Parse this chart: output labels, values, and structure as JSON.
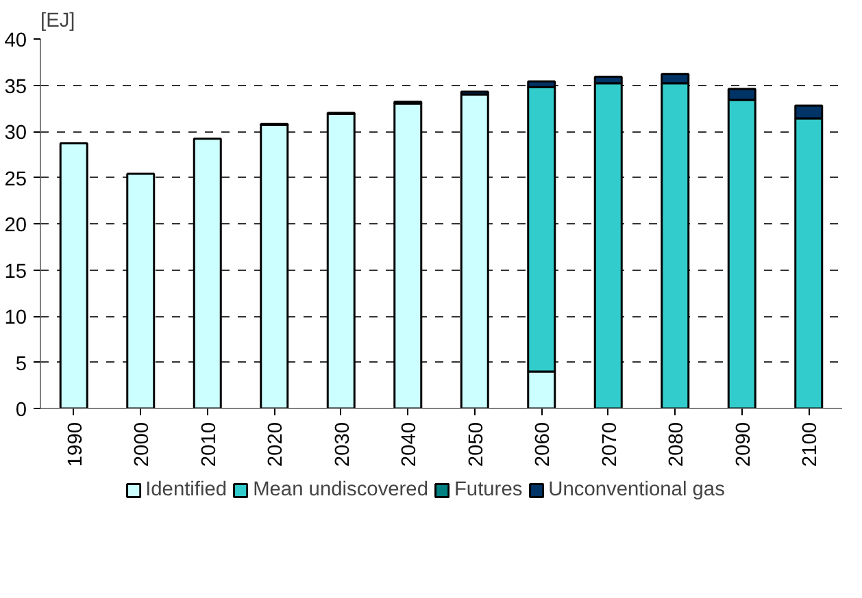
{
  "chart_data": {
    "type": "bar",
    "stacked": true,
    "ylabel": "[EJ]",
    "categories": [
      "1990",
      "2000",
      "2010",
      "2020",
      "2030",
      "2040",
      "2050",
      "2060",
      "2070",
      "2080",
      "2090",
      "2100"
    ],
    "series": [
      {
        "name": "Identified",
        "color": "#ccffff",
        "values": [
          28.7,
          25.4,
          29.2,
          30.7,
          31.9,
          33.0,
          34.0,
          4.0,
          0,
          0,
          0,
          0
        ]
      },
      {
        "name": "Mean undiscovered",
        "color": "#33cccc",
        "values": [
          0,
          0,
          0,
          0,
          0,
          0,
          0,
          30.8,
          35.2,
          35.2,
          33.4,
          31.4
        ]
      },
      {
        "name": "Futures",
        "color": "#008080",
        "values": [
          0,
          0,
          0,
          0,
          0,
          0,
          0,
          0,
          0,
          0,
          0,
          0
        ]
      },
      {
        "name": "Unconventional gas",
        "color": "#003366",
        "values": [
          0,
          0,
          0,
          0.1,
          0.1,
          0.2,
          0.3,
          0.6,
          0.7,
          1.0,
          1.2,
          1.4
        ]
      }
    ],
    "ylim": [
      0,
      40
    ],
    "yticks": [
      0,
      5,
      10,
      15,
      20,
      25,
      30,
      35,
      40
    ],
    "grid": "y",
    "legend": "bottom"
  }
}
